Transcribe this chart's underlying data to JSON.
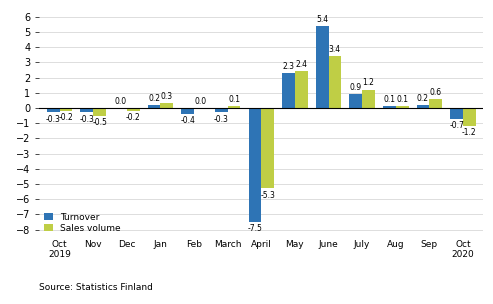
{
  "categories": [
    "Oct\n2019",
    "Nov",
    "Dec",
    "Jan",
    "Feb",
    "March",
    "April",
    "May",
    "June",
    "July",
    "Aug",
    "Sep",
    "Oct\n2020"
  ],
  "turnover": [
    -0.3,
    -0.3,
    0.0,
    0.2,
    -0.4,
    -0.3,
    -7.5,
    2.3,
    5.4,
    0.9,
    0.1,
    0.2,
    -0.7
  ],
  "sales_volume": [
    -0.2,
    -0.5,
    -0.2,
    0.3,
    0.0,
    0.1,
    -5.3,
    2.4,
    3.4,
    1.2,
    0.1,
    0.6,
    -1.2
  ],
  "turnover_color": "#2E74B5",
  "sales_volume_color": "#BFCE45",
  "ylim": [
    -8.5,
    6.5
  ],
  "yticks": [
    -8,
    -7,
    -6,
    -5,
    -4,
    -3,
    -2,
    -1,
    0,
    1,
    2,
    3,
    4,
    5,
    6
  ],
  "legend_labels": [
    "Turnover",
    "Sales volume"
  ],
  "source_text": "Source: Statistics Finland",
  "bar_width": 0.38,
  "label_fontsize": 5.5,
  "tick_fontsize": 6.5,
  "ytick_fontsize": 7.0
}
